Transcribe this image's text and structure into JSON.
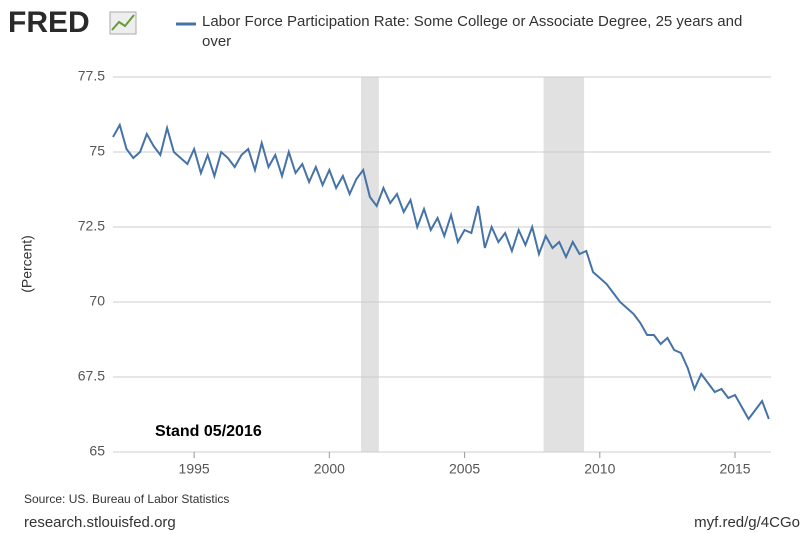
{
  "logo": "FRED",
  "chart_data": {
    "type": "line",
    "ylabel": "(Percent)",
    "annotation": "Stand 05/2016",
    "source": "Source: US. Bureau of Labor Statistics",
    "site": "research.stlouisfed.org",
    "link": "myf.red/g/4CGo",
    "xlim": [
      1992,
      2016.33
    ],
    "xticks": [
      1995,
      2000,
      2005,
      2010,
      2015
    ],
    "ylim": [
      65,
      77.5
    ],
    "yticks": [
      65,
      67.5,
      70,
      72.5,
      75,
      77.5
    ],
    "grid": true,
    "recessions": [
      [
        2001.17,
        2001.83
      ],
      [
        2007.92,
        2009.42
      ]
    ],
    "recession_color": "#e1e1e1",
    "x": [
      1992,
      1992.25,
      1992.5,
      1992.75,
      1993,
      1993.25,
      1993.5,
      1993.75,
      1994,
      1994.25,
      1994.5,
      1994.75,
      1995,
      1995.25,
      1995.5,
      1995.75,
      1996,
      1996.25,
      1996.5,
      1996.75,
      1997,
      1997.25,
      1997.5,
      1997.75,
      1998,
      1998.25,
      1998.5,
      1998.75,
      1999,
      1999.25,
      1999.5,
      1999.75,
      2000,
      2000.25,
      2000.5,
      2000.75,
      2001,
      2001.25,
      2001.5,
      2001.75,
      2002,
      2002.25,
      2002.5,
      2002.75,
      2003,
      2003.25,
      2003.5,
      2003.75,
      2004,
      2004.25,
      2004.5,
      2004.75,
      2005,
      2005.25,
      2005.5,
      2005.75,
      2006,
      2006.25,
      2006.5,
      2006.75,
      2007,
      2007.25,
      2007.5,
      2007.75,
      2008,
      2008.25,
      2008.5,
      2008.75,
      2009,
      2009.25,
      2009.5,
      2009.75,
      2010,
      2010.25,
      2010.5,
      2010.75,
      2011,
      2011.25,
      2011.5,
      2011.75,
      2012,
      2012.25,
      2012.5,
      2012.75,
      2013,
      2013.25,
      2013.5,
      2013.75,
      2014,
      2014.25,
      2014.5,
      2014.75,
      2015,
      2015.25,
      2015.5,
      2015.75,
      2016,
      2016.25
    ],
    "series": [
      {
        "name": "Labor Force Participation Rate: Some College or Associate Degree, 25 years and over",
        "color": "#4572a7",
        "values": [
          75.5,
          75.9,
          75.1,
          74.8,
          75.0,
          75.6,
          75.2,
          74.9,
          75.8,
          75.0,
          74.8,
          74.6,
          75.1,
          74.3,
          74.9,
          74.2,
          75.0,
          74.8,
          74.5,
          74.9,
          75.1,
          74.4,
          75.3,
          74.5,
          74.9,
          74.2,
          75.0,
          74.3,
          74.6,
          74.0,
          74.5,
          73.9,
          74.4,
          73.8,
          74.2,
          73.6,
          74.1,
          74.4,
          73.5,
          73.2,
          73.8,
          73.3,
          73.6,
          73.0,
          73.4,
          72.5,
          73.1,
          72.4,
          72.8,
          72.2,
          72.9,
          72.0,
          72.4,
          72.3,
          73.2,
          71.8,
          72.5,
          72.0,
          72.3,
          71.7,
          72.4,
          71.9,
          72.5,
          71.6,
          72.2,
          71.8,
          72.0,
          71.5,
          72.0,
          71.6,
          71.7,
          71.0,
          70.8,
          70.6,
          70.3,
          70.0,
          69.8,
          69.6,
          69.3,
          68.9,
          68.9,
          68.6,
          68.8,
          68.4,
          68.3,
          67.8,
          67.1,
          67.6,
          67.3,
          67.0,
          67.1,
          66.8,
          66.9,
          66.5,
          66.1,
          66.4,
          66.7,
          66.1
        ]
      }
    ]
  }
}
